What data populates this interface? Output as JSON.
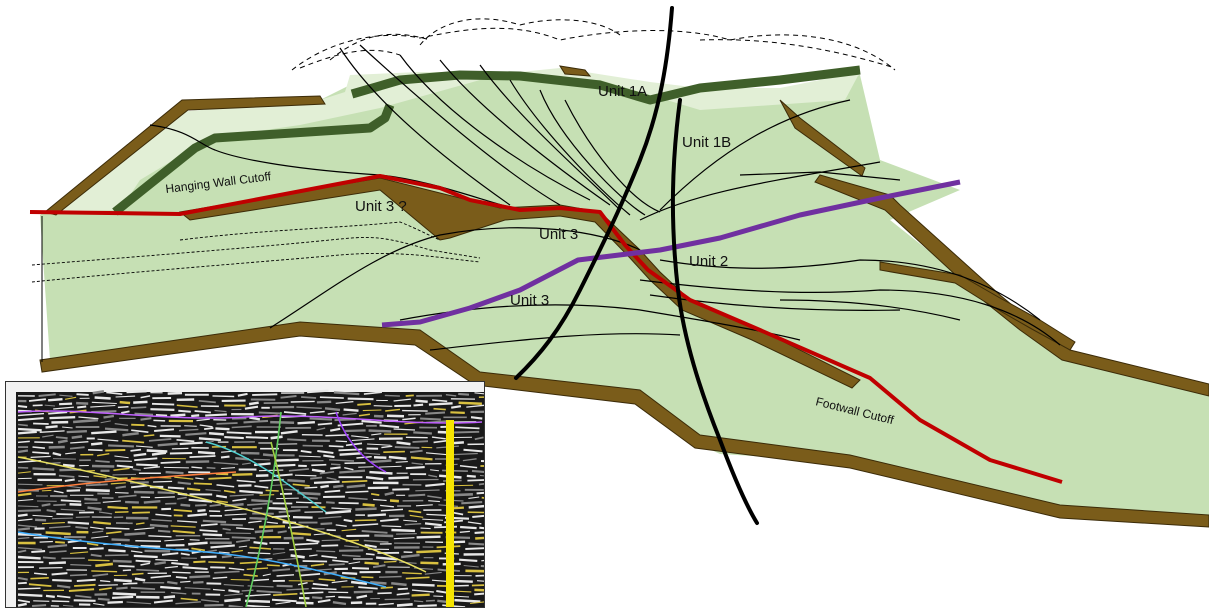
{
  "labels": {
    "unit_1a": "Unit 1A",
    "unit_1b": "Unit 1B",
    "unit_2": "Unit 2",
    "unit_3_upper": "Unit 3",
    "unit_3_lower": "Unit 3",
    "unit_3_query": "Unit 3 ?",
    "hanging_wall_cutoff": "Hanging Wall Cutoff",
    "footwall_cutoff": "Footwall Cutoff"
  },
  "colors": {
    "fill_unit": "#c6e0b4",
    "fill_unit_light": "#e2efd6",
    "brown_layer": "#7a5c1a",
    "dark_green_layer": "#3f5f2a",
    "red_cutoff": "#c00000",
    "purple_fault": "#7030a0",
    "black_fault": "#000000"
  },
  "inset": {
    "description_icon": "seismic-section-image"
  }
}
